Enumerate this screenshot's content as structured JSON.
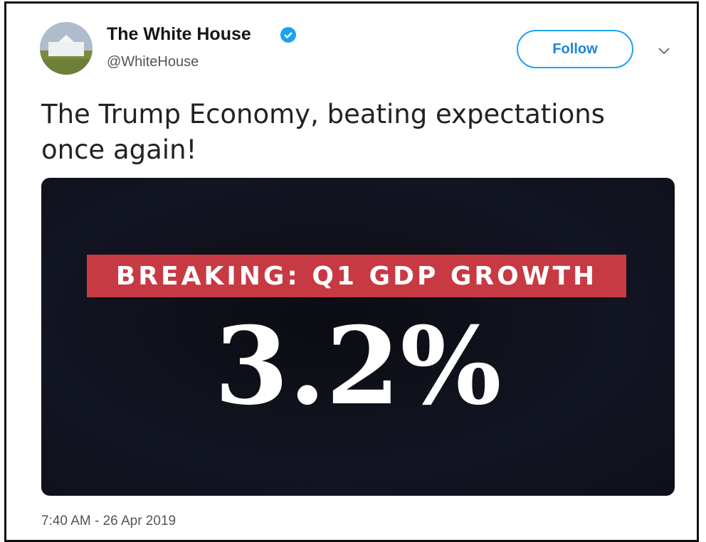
{
  "tweet": {
    "author": {
      "name": "The White House",
      "handle": "@WhiteHouse"
    },
    "follow_button": "Follow",
    "text": [
      "The Trump Economy, beating expectations",
      "once again!"
    ],
    "image": {
      "banner": "BREAKING: Q1 GDP GROWTH",
      "headline": "3.2%"
    },
    "timestamp": "7:40 AM - 26 Apr 2019"
  }
}
